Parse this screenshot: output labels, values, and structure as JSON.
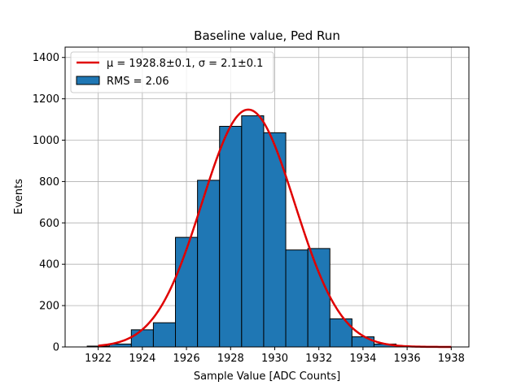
{
  "chart_data": {
    "type": "bar",
    "title": "Baseline value, Ped Run",
    "xlabel": "Sample Value [ADC Counts]",
    "ylabel": "Events",
    "xlim": [
      1920.5,
      1938.8
    ],
    "ylim": [
      0,
      1450
    ],
    "xticks": [
      1922,
      1924,
      1926,
      1928,
      1930,
      1932,
      1934,
      1936,
      1938
    ],
    "yticks": [
      0,
      200,
      400,
      600,
      800,
      1000,
      1200,
      1400
    ],
    "grid": true,
    "legend_position": "top-left",
    "bar_color": "#1f77b4",
    "fit_color": "#e00000",
    "histogram": {
      "name": "RMS = 2.06",
      "bins": [
        {
          "x0": 1921.5,
          "x1": 1922.5,
          "value": 4
        },
        {
          "x0": 1922.5,
          "x1": 1923.5,
          "value": 14
        },
        {
          "x0": 1923.5,
          "x1": 1924.5,
          "value": 83
        },
        {
          "x0": 1924.5,
          "x1": 1925.5,
          "value": 117
        },
        {
          "x0": 1925.5,
          "x1": 1926.5,
          "value": 530
        },
        {
          "x0": 1926.5,
          "x1": 1927.5,
          "value": 806
        },
        {
          "x0": 1927.5,
          "x1": 1928.5,
          "value": 1067
        },
        {
          "x0": 1928.5,
          "x1": 1929.5,
          "value": 1118
        },
        {
          "x0": 1929.5,
          "x1": 1930.5,
          "value": 1036
        },
        {
          "x0": 1930.5,
          "x1": 1931.5,
          "value": 469
        },
        {
          "x0": 1931.5,
          "x1": 1932.5,
          "value": 476
        },
        {
          "x0": 1932.5,
          "x1": 1933.5,
          "value": 136
        },
        {
          "x0": 1933.5,
          "x1": 1934.5,
          "value": 49
        },
        {
          "x0": 1934.5,
          "x1": 1935.5,
          "value": 14
        },
        {
          "x0": 1935.5,
          "x1": 1936.5,
          "value": 2
        }
      ]
    },
    "fit": {
      "name": "μ = 1928.8±0.1, σ = 2.1±0.1",
      "type": "gaussian",
      "mu": 1928.8,
      "sigma": 2.1,
      "amplitude": 1148,
      "x_range": [
        1922,
        1938
      ]
    }
  }
}
